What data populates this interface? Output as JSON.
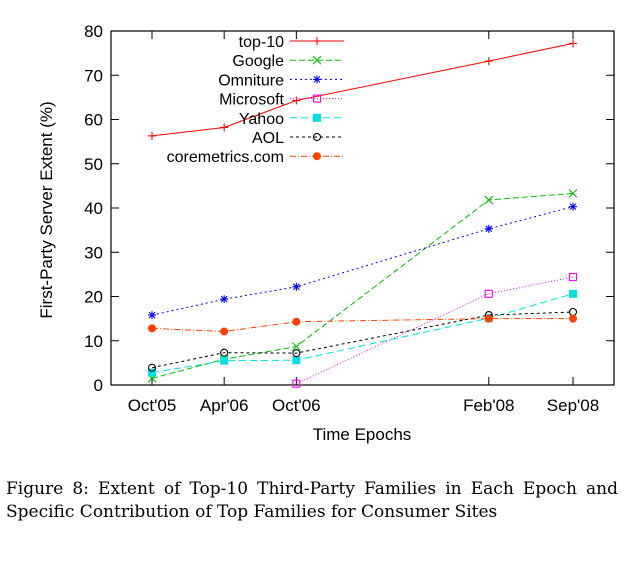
{
  "chart_data": {
    "type": "line",
    "categories": [
      "Oct'05",
      "Apr'06",
      "Oct'06",
      "Feb'08",
      "Sep'08"
    ],
    "x_months_positioned": true,
    "xlabel": "Time Epochs",
    "ylabel": "First-Party Server Extent (%)",
    "ylim": [
      0,
      80
    ],
    "yticks": [
      "0",
      "10",
      "20",
      "30",
      "40",
      "50",
      "60",
      "70",
      "80"
    ],
    "grid": false,
    "legend_position": "top-left",
    "series": [
      {
        "name": "top-10",
        "color": "#ff0000",
        "marker": "plus",
        "dash": "",
        "values": [
          56.3,
          58.2,
          64.3,
          73.2,
          77.2
        ]
      },
      {
        "name": "Google",
        "color": "#00c000",
        "marker": "cross",
        "dash": "6,3",
        "values": [
          1.5,
          5.8,
          8.7,
          41.8,
          43.3
        ]
      },
      {
        "name": "Omniture",
        "color": "#0000ff",
        "marker": "star",
        "dash": "2,3",
        "values": [
          15.8,
          19.4,
          22.2,
          35.3,
          40.3
        ]
      },
      {
        "name": "Microsoft",
        "color": "#ff00ff",
        "marker": "open-square",
        "dash": "1,2",
        "values": [
          null,
          null,
          0.3,
          20.6,
          24.4
        ]
      },
      {
        "name": "Yahoo",
        "color": "#00e0e0",
        "marker": "filled-square",
        "dash": "7,4",
        "values": [
          2.8,
          5.5,
          5.6,
          15.1,
          20.6
        ]
      },
      {
        "name": "AOL",
        "color": "#000000",
        "marker": "open-circle",
        "dash": "3,3",
        "values": [
          3.9,
          7.3,
          7.2,
          15.8,
          16.5
        ]
      },
      {
        "name": "coremetrics.com",
        "color": "#ff4000",
        "marker": "filled-circle",
        "dash": "6,2,1,2",
        "values": [
          12.8,
          12.1,
          14.3,
          15.0,
          15.0
        ]
      }
    ]
  },
  "caption": "Figure 8: Extent of Top-10 Third-Party Families in Each Epoch and Specific Contribution of Top Families for Consumer Sites"
}
